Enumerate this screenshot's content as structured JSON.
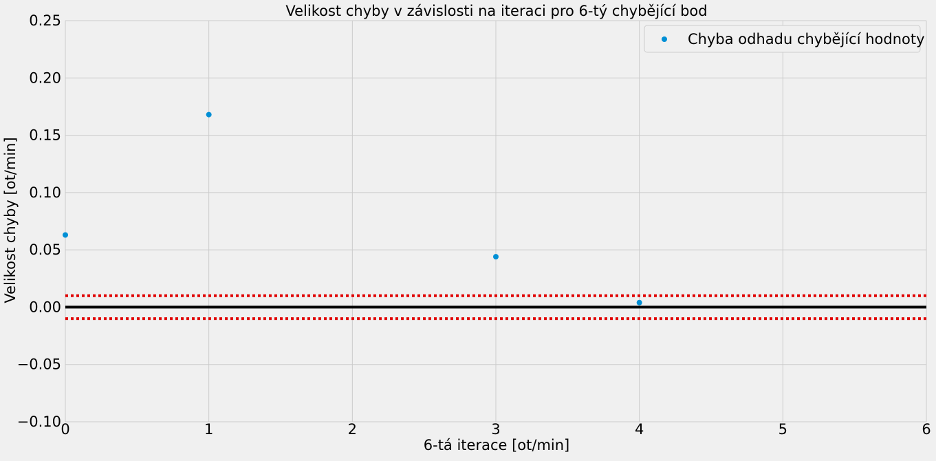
{
  "chart_data": {
    "type": "scatter",
    "title": "Velikost chyby v závislosti na iteraci pro 6-tý chybějící bod",
    "xlabel": "6-tá iterace [ot/min]",
    "ylabel": "Velikost chyby [ot/min]",
    "xlim": [
      0,
      6
    ],
    "ylim": [
      -0.1,
      0.25
    ],
    "xticks": [
      "0",
      "1",
      "2",
      "3",
      "4",
      "5",
      "6"
    ],
    "yticks": [
      "−0.10",
      "−0.05",
      "0.00",
      "0.05",
      "0.10",
      "0.15",
      "0.20",
      "0.25"
    ],
    "ytick_values": [
      -0.1,
      -0.05,
      0.0,
      0.05,
      0.1,
      0.15,
      0.2,
      0.25
    ],
    "xtick_values": [
      0,
      1,
      2,
      3,
      4,
      5,
      6
    ],
    "grid": true,
    "legend_position": "top-right",
    "series": [
      {
        "name": "Chyba odhadu chybějící hodnoty",
        "color": "#008fd5",
        "x": [
          0,
          1,
          3,
          4
        ],
        "y": [
          0.063,
          0.168,
          0.044,
          0.004
        ]
      }
    ],
    "reference_lines": [
      {
        "y": 0.0,
        "color": "#000000",
        "style": "solid"
      },
      {
        "y": 0.01,
        "color": "#e00000",
        "style": "dotted"
      },
      {
        "y": -0.01,
        "color": "#e00000",
        "style": "dotted"
      }
    ]
  }
}
